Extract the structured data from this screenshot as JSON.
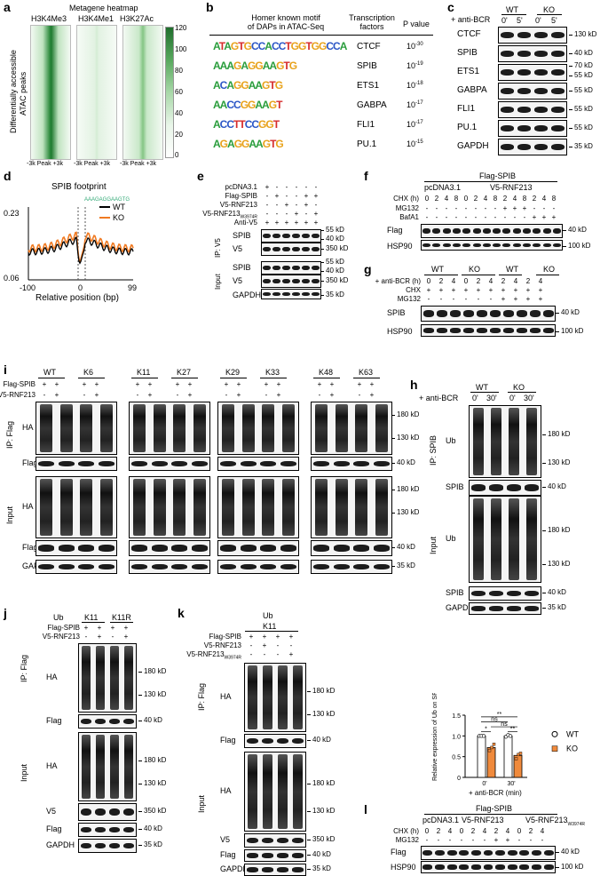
{
  "panels": {
    "a": "a",
    "b": "b",
    "c": "c",
    "d": "d",
    "e": "e",
    "f": "f",
    "g": "g",
    "h": "h",
    "i": "i",
    "j": "j",
    "k": "k",
    "l": "l"
  },
  "a": {
    "title": "Metagene heatmap",
    "columns": [
      "H3K4Me3",
      "H3K4Me1",
      "H3K27Ac"
    ],
    "ylabel_1": "Differentially accessible",
    "ylabel_2": "ATAC peaks",
    "x_ticks": [
      "-3k Peak +3k",
      "-3k Peak +3k",
      "-3k Peak +3k"
    ],
    "scale": [
      "120",
      "100",
      "80",
      "60",
      "40",
      "20",
      "0"
    ],
    "color": "#2e8b3e"
  },
  "b": {
    "col1_1": "Homer known motif",
    "col1_2": "of DAPs in ATAC-Seq",
    "col2_1": "Transcription",
    "col2_2": "factors",
    "col3": "P value",
    "rows": [
      {
        "motif": "ATAGTGCCACCTGGTGGCCA",
        "tf": "CTCF",
        "p": "10",
        "exp": "-30"
      },
      {
        "motif": "AAAGAGGAAGTG",
        "tf": "SPIB",
        "p": "10",
        "exp": "-19"
      },
      {
        "motif": "ACAGGAAGTG",
        "tf": "ETS1",
        "p": "10",
        "exp": "-18"
      },
      {
        "motif": "AACCGGAAGT",
        "tf": "GABPA",
        "p": "10",
        "exp": "-17"
      },
      {
        "motif": "ACCTTCCGGT",
        "tf": "FLI1",
        "p": "10",
        "exp": "-17"
      },
      {
        "motif": "AGAGGAAGTG",
        "tf": "PU.1",
        "p": "10",
        "exp": "-15"
      }
    ]
  },
  "c": {
    "antiBCR": "+ anti-BCR",
    "groups": [
      "WT",
      "KO"
    ],
    "times": [
      "0'",
      "5'",
      "0'",
      "5'"
    ],
    "rows": [
      {
        "label": "CTCF",
        "mw": [
          "130 kD"
        ]
      },
      {
        "label": "SPIB",
        "mw": [
          "40 kD"
        ]
      },
      {
        "label": "ETS1",
        "mw": [
          "70 kD",
          "55 kD"
        ]
      },
      {
        "label": "GABPA",
        "mw": [
          "55 kD"
        ]
      },
      {
        "label": "FLI1",
        "mw": [
          "55 kD"
        ]
      },
      {
        "label": "PU.1",
        "mw": [
          "55 kD"
        ]
      },
      {
        "label": "GAPDH",
        "mw": [
          "35 kD"
        ]
      }
    ]
  },
  "d": {
    "title": "SPIB footprint",
    "motif": "AAAGAGGAAGTG",
    "xlabel": "Relative position (bp)",
    "y_ticks": [
      "0.23",
      "0.06"
    ],
    "x_ticks": [
      "-100",
      "0",
      "99"
    ],
    "legend": [
      {
        "name": "WT",
        "color": "#000000"
      },
      {
        "name": "KO",
        "color": "#f07a22"
      }
    ]
  },
  "e": {
    "conds": [
      "pcDNA3.1",
      "Flag-SPIB",
      "V5-RNF213",
      "V5-RNF213",
      "Anti-V5"
    ],
    "sub": "W3974R",
    "signs": [
      [
        "+",
        "-",
        "-",
        "-",
        "-",
        "-"
      ],
      [
        "-",
        "+",
        "-",
        "-",
        "+",
        "+"
      ],
      [
        "-",
        "-",
        "+",
        "-",
        "+",
        "-"
      ],
      [
        "-",
        "-",
        "-",
        "+",
        "-",
        "+"
      ],
      [
        "+",
        "+",
        "+",
        "+",
        "+",
        "+"
      ]
    ],
    "ip": "IP: V5",
    "input": "Input",
    "rows": [
      {
        "label": "SPIB",
        "mw": [
          "55 kD",
          "40 kD"
        ]
      },
      {
        "label": "V5",
        "mw": [
          "350 kD"
        ]
      },
      {
        "label": "SPIB",
        "mw": [
          "55 kD",
          "40 kD"
        ]
      },
      {
        "label": "V5",
        "mw": [
          "350 kD"
        ]
      },
      {
        "label": "GAPDH",
        "mw": [
          "35 kD"
        ]
      }
    ]
  },
  "f": {
    "top": "Flag-SPIB",
    "g1": "pcDNA3.1",
    "g2": "V5-RNF213",
    "chx": "CHX (h)",
    "chx_vals": [
      "0",
      "2",
      "4",
      "8",
      "0",
      "2",
      "4",
      "8",
      "2",
      "4",
      "8",
      "2",
      "4",
      "8"
    ],
    "mg132": "MG132",
    "mg_vals": [
      "-",
      "-",
      "-",
      "-",
      "-",
      "-",
      "-",
      "-",
      "+",
      "+",
      "+",
      "-",
      "-",
      "-"
    ],
    "bafa1": "BafA1",
    "baf_vals": [
      "-",
      "-",
      "-",
      "-",
      "-",
      "-",
      "-",
      "-",
      "-",
      "-",
      "-",
      "+",
      "+",
      "+"
    ],
    "rows": [
      {
        "label": "Flag",
        "mw": "40 kD"
      },
      {
        "label": "HSP90",
        "mw": "100 kD"
      }
    ]
  },
  "g": {
    "groups": [
      "WT",
      "KO",
      "WT",
      "KO"
    ],
    "antiBCR": "+ anti-BCR (h)",
    "times": [
      "0",
      "2",
      "4",
      "0",
      "2",
      "4",
      "2",
      "4",
      "2",
      "4"
    ],
    "chx": "CHX",
    "chx_vals": [
      "+",
      "+",
      "+",
      "+",
      "+",
      "+",
      "+",
      "+",
      "+",
      "+"
    ],
    "mg132": "MG132",
    "mg_vals": [
      "-",
      "-",
      "-",
      "-",
      "-",
      "-",
      "+",
      "+",
      "+",
      "+"
    ],
    "rows": [
      {
        "label": "SPIB",
        "mw": "40 kD"
      },
      {
        "label": "HSP90",
        "mw": "100 kD"
      }
    ]
  },
  "h": {
    "groups": [
      "WT",
      "KO"
    ],
    "antiBCR": "+ anti-BCR",
    "times": [
      "0'",
      "30'",
      "0'",
      "30'"
    ],
    "ip": "IP: SPIB",
    "input": "Input",
    "rows": [
      {
        "label": "Ub",
        "mw": [
          "180 kD",
          "130 kD"
        ]
      },
      {
        "label": "SPIB",
        "mw": [
          "40 kD"
        ]
      },
      {
        "label": "Ub",
        "mw": [
          "180 kD",
          "130 kD"
        ]
      },
      {
        "label": "SPIB",
        "mw": [
          "40 kD"
        ]
      },
      {
        "label": "GAPDH",
        "mw": [
          "35 kD"
        ]
      }
    ]
  },
  "i": {
    "groups": [
      "WT",
      "K6",
      "K11",
      "K27",
      "K29",
      "K33",
      "K48",
      "K63"
    ],
    "flag_label": "Flag-SPIB",
    "v5_label": "V5-RNF213",
    "ip": "IP: Flag",
    "input": "Input",
    "rows": [
      {
        "label": "HA",
        "mw": [
          "180 kD",
          "130 kD"
        ]
      },
      {
        "label": "Flag",
        "mw": [
          "40 kD"
        ]
      },
      {
        "label": "HA",
        "mw": [
          "180 kD",
          "130 kD"
        ]
      },
      {
        "label": "Flag",
        "mw": [
          "40 kD"
        ]
      },
      {
        "label": "GAPDH",
        "mw": [
          "35 kD"
        ]
      }
    ]
  },
  "j": {
    "ub": "Ub",
    "groups": [
      "K11",
      "K11R"
    ],
    "flag_label": "Flag-SPIB",
    "v5_label": "V5-RNF213",
    "flag_vals": [
      "+",
      "+",
      "+",
      "+"
    ],
    "v5_vals": [
      "-",
      "+",
      "-",
      "+"
    ],
    "ip": "IP: Flag",
    "input": "Input",
    "rows": [
      {
        "label": "HA",
        "mw": [
          "180 kD",
          "130 kD"
        ]
      },
      {
        "label": "Flag",
        "mw": [
          "40 kD"
        ]
      },
      {
        "label": "HA",
        "mw": [
          "180 kD",
          "130 kD"
        ]
      },
      {
        "label": "V5",
        "mw": [
          "350 kD"
        ]
      },
      {
        "label": "Flag",
        "mw": [
          "40 kD"
        ]
      },
      {
        "label": "GAPDH",
        "mw": [
          "35 kD"
        ]
      }
    ]
  },
  "k": {
    "ub": "Ub",
    "group": "K11",
    "flag_label": "Flag-SPIB",
    "v5_label": "V5-RNF213",
    "v5m_label": "V5-RNF213",
    "sub": "W3974R",
    "flag_vals": [
      "+",
      "+",
      "+",
      "+"
    ],
    "v5_vals": [
      "-",
      "+",
      "-",
      "-"
    ],
    "v5m_vals": [
      "-",
      "-",
      "-",
      "+"
    ],
    "ip": "IP: Flag",
    "input": "Input",
    "rows": [
      {
        "label": "HA",
        "mw": [
          "180 kD",
          "130 kD"
        ]
      },
      {
        "label": "Flag",
        "mw": [
          "40 kD"
        ]
      },
      {
        "label": "HA",
        "mw": [
          "180 kD",
          "130 kD"
        ]
      },
      {
        "label": "V5",
        "mw": [
          "350 kD"
        ]
      },
      {
        "label": "Flag",
        "mw": [
          "40 kD"
        ]
      },
      {
        "label": "GAPDH",
        "mw": [
          "35 kD"
        ]
      }
    ]
  },
  "l": {
    "top": "Flag-SPIB",
    "g1": "pcDNA3.1",
    "g2": "V5-RNF213",
    "g3": "V5-RNF213",
    "sub": "W3974R",
    "chx": "CHX (h)",
    "chx_vals": [
      "0",
      "2",
      "4",
      "0",
      "2",
      "4",
      "2",
      "4",
      "0",
      "2",
      "4"
    ],
    "mg132": "MG132",
    "mg_vals": [
      "-",
      "-",
      "-",
      "-",
      "-",
      "-",
      "+",
      "+",
      "-",
      "-",
      "-"
    ],
    "rows": [
      {
        "label": "Flag",
        "mw": "40 kD"
      },
      {
        "label": "HSP90",
        "mw": "100 kD"
      }
    ]
  },
  "chart_data": {
    "type": "bar",
    "categories": [
      "0'",
      "30'"
    ],
    "series": [
      {
        "name": "WT",
        "values": [
          1.0,
          1.0
        ],
        "points": [
          [
            1.0,
            1.0,
            1.0
          ],
          [
            0.98,
            1.02,
            1.0
          ]
        ]
      },
      {
        "name": "KO",
        "values": [
          0.72,
          0.53
        ],
        "points": [
          [
            0.65,
            0.72,
            0.8
          ],
          [
            0.45,
            0.55,
            0.58
          ]
        ]
      }
    ],
    "ylabel": "Relative expression of Ub on SPIB (Normalized to WT-0')",
    "xlabel": "+ anti-BCR (min)",
    "ylim": [
      0,
      1.5
    ],
    "y_ticks": [
      "0",
      "0.5",
      "1.0",
      "1.5"
    ],
    "colors": {
      "WT": "#ffffff",
      "KO": "#f08a3c"
    },
    "significance": [
      "*",
      "ns",
      "ns",
      "**",
      "**"
    ],
    "legend_position": "right"
  }
}
